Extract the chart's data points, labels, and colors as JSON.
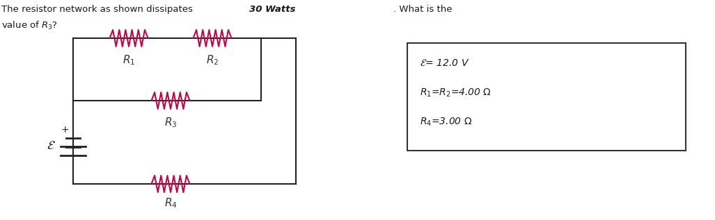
{
  "title_text": "The resistor network as shown dissipates ",
  "title_bold": "30 Watts",
  "title_suffix": ". What is the",
  "title_line2": "value of R₃?",
  "box_lines": [
    "ε= 12.0 V",
    "R₁=R₂=4.00 Ω",
    "R₄=3.00 Ω"
  ],
  "wire_color": "#222222",
  "resistor_color": "#cc0044",
  "background_color": "#ffffff",
  "fig_width": 10.27,
  "fig_height": 3.17,
  "dpi": 100
}
